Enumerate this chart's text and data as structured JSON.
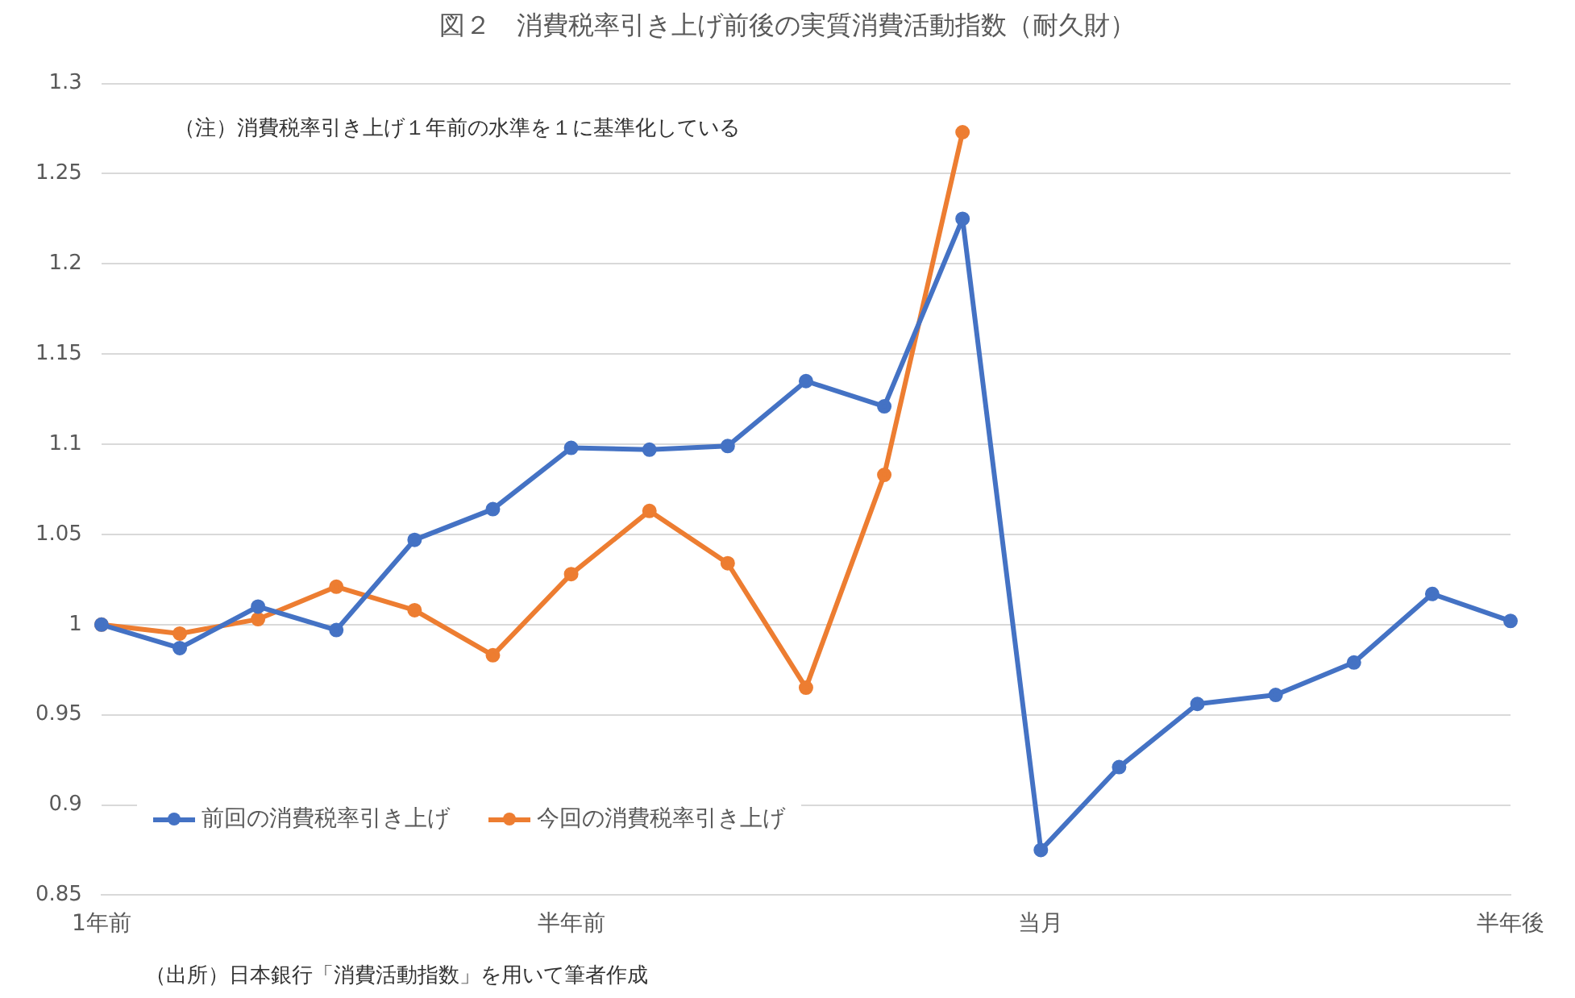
{
  "chart_data": {
    "type": "line",
    "title": "図２　消費税率引き上げ前後の実質消費活動指数（耐久財）",
    "categories": [
      "1年前",
      null,
      null,
      null,
      null,
      null,
      "半年前",
      null,
      null,
      null,
      null,
      null,
      "当月",
      null,
      null,
      null,
      null,
      null,
      "半年後"
    ],
    "series": [
      {
        "name": "前回の消費税率引き上げ",
        "color": "#4472c4",
        "values": [
          1.0,
          0.987,
          1.01,
          0.997,
          1.047,
          1.064,
          1.098,
          1.097,
          1.099,
          1.135,
          1.121,
          1.225,
          0.875,
          0.921,
          0.956,
          0.961,
          0.979,
          1.017,
          1.002
        ]
      },
      {
        "name": "今回の消費税率引き上げ",
        "color": "#ed7d31",
        "values": [
          1.0,
          0.995,
          1.003,
          1.021,
          1.008,
          0.983,
          1.028,
          1.063,
          1.034,
          0.965,
          1.083,
          1.273,
          null,
          null,
          null,
          null,
          null,
          null,
          null
        ]
      }
    ],
    "ylim": [
      0.85,
      1.3
    ],
    "yticks": [
      0.85,
      0.9,
      0.95,
      1,
      1.05,
      1.1,
      1.15,
      1.2,
      1.25,
      1.3
    ],
    "grid": "y",
    "legend": "bottom left",
    "marker": "circle",
    "line_style": "solid",
    "annotations": [
      "（注）消費税率引き上げ１年前の水準を１に基準化している",
      "（出所）日本銀行「消費活動指数」を用いて筆者作成"
    ]
  }
}
